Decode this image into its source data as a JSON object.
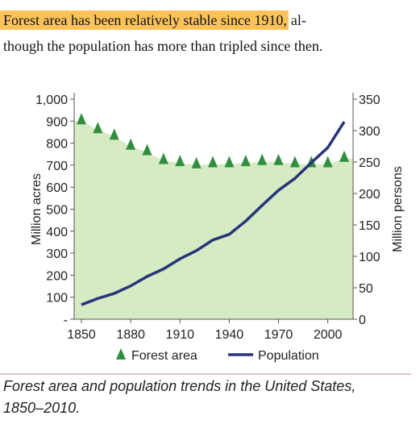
{
  "text": {
    "highlight": "Forest area has been relatively stable since 1910,",
    "line1_rest": "al-",
    "line2": "though the population has more than tripled since then."
  },
  "chart_data": {
    "type": "line",
    "categories": [
      "1850",
      null,
      null,
      "1880",
      null,
      null,
      "1910",
      null,
      null,
      "1940",
      null,
      null,
      "1970",
      null,
      null,
      "2000",
      null
    ],
    "series": [
      {
        "name": "Forest area",
        "color": "#2f8f3e",
        "values": [
          900,
          860,
          830,
          785,
          760,
          720,
          710,
          700,
          705,
          705,
          710,
          715,
          715,
          705,
          705,
          705,
          730
        ]
      },
      {
        "name": "Population",
        "color": "#26357a",
        "axis": "y2",
        "values": [
          23,
          33,
          41,
          53,
          68,
          80,
          96,
          109,
          126,
          135,
          156,
          181,
          205,
          224,
          249,
          273,
          314
        ]
      }
    ],
    "area_color": "#d6eac3",
    "ylabel": "Million acres",
    "y2label": "Million persons",
    "ylim": [
      0,
      1000
    ],
    "yticks": [
      {
        "value": 0,
        "label": "-"
      },
      100,
      200,
      300,
      400,
      500,
      600,
      700,
      800,
      900,
      {
        "value": 1000,
        "label": "1,000"
      }
    ],
    "y2lim": [
      0,
      350
    ],
    "y2ticks": [
      0,
      50,
      100,
      150,
      200,
      250,
      300,
      350
    ],
    "legend": "bottom"
  },
  "caption": "Forest area and population trends in the United States, 1850–2010."
}
